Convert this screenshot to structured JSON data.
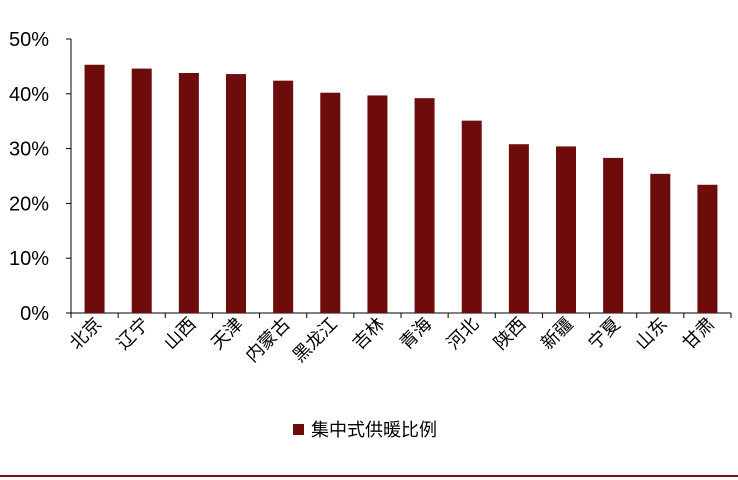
{
  "chart_data": {
    "type": "bar",
    "title": "",
    "xlabel": "",
    "ylabel": "",
    "categories": [
      "北京",
      "辽宁",
      "山西",
      "天津",
      "内蒙古",
      "黑龙江",
      "吉林",
      "青海",
      "河北",
      "陕西",
      "新疆",
      "宁夏",
      "山东",
      "甘肃"
    ],
    "series": [
      {
        "name": "集中式供暖比例",
        "values": [
          45.3,
          44.6,
          43.8,
          43.6,
          42.4,
          40.2,
          39.7,
          39.2,
          35.1,
          30.8,
          30.4,
          28.3,
          25.4,
          23.4
        ]
      }
    ],
    "ylim": [
      0,
      50
    ],
    "yticks": [
      "0%",
      "10%",
      "20%",
      "30%",
      "40%",
      "50%"
    ],
    "grid": false,
    "legend": "bottom-center",
    "bar_color": "#6e0b0b",
    "frame_color": "#7a1212"
  }
}
